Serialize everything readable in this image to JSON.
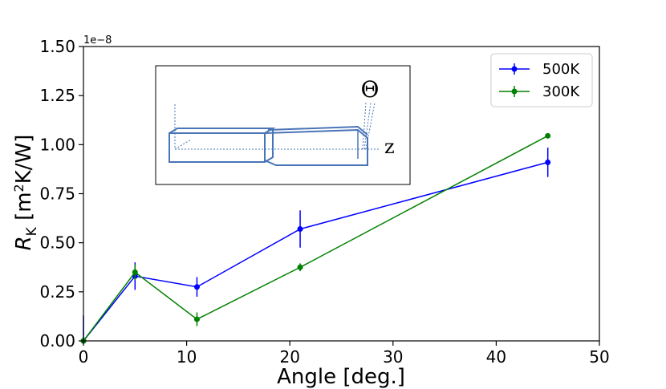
{
  "chart_data": {
    "type": "line",
    "xlabel": "Angle [deg.]",
    "ylabel_main": "R",
    "ylabel_sub": "K",
    "ylabel_unit_pre": " [m",
    "ylabel_unit_sup": "2",
    "ylabel_unit_post": "K/W]",
    "y_offset_text": "1e−8",
    "xlim": [
      0,
      50
    ],
    "ylim": [
      0,
      1.5
    ],
    "x_ticks": [
      0,
      10,
      20,
      30,
      40,
      50
    ],
    "x_tick_labels": [
      "0",
      "10",
      "20",
      "30",
      "40",
      "50"
    ],
    "y_ticks": [
      0,
      0.25,
      0.5,
      0.75,
      1.0,
      1.25,
      1.5
    ],
    "y_tick_labels": [
      "0.00",
      "0.25",
      "0.50",
      "0.75",
      "1.00",
      "1.25",
      "1.50"
    ],
    "grid": false,
    "legend_position": "top-right",
    "series": [
      {
        "name": "500K",
        "color": "#0000ff",
        "x": [
          0,
          5,
          11,
          21,
          45
        ],
        "y": [
          0.0,
          0.33,
          0.275,
          0.57,
          0.91
        ],
        "yerr": [
          0.13,
          0.07,
          0.05,
          0.095,
          0.075
        ]
      },
      {
        "name": "300K",
        "color": "#008000",
        "x": [
          0,
          5,
          11,
          21,
          45
        ],
        "y": [
          0.0,
          0.35,
          0.11,
          0.375,
          1.045
        ],
        "yerr": [
          0.0,
          0.04,
          0.035,
          0.02,
          0.0
        ]
      }
    ],
    "inset": {
      "theta_label": "Θ",
      "axis_label": "z"
    }
  }
}
